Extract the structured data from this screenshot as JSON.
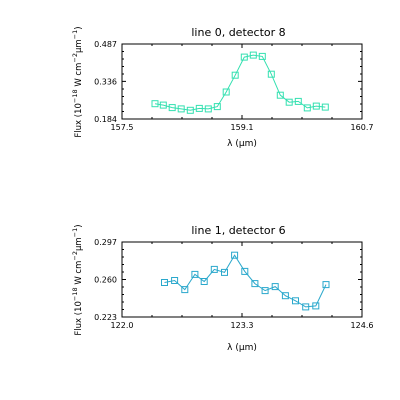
{
  "chart_data": [
    {
      "type": "line",
      "title": "line 0, detector 8",
      "xlabel": "λ (μm)",
      "ylabel_parts": [
        "Flux (10",
        "−18",
        " W cm",
        "−2",
        "μm",
        "−1",
        ")"
      ],
      "xlim": [
        157.5,
        160.7
      ],
      "ylim": [
        0.184,
        0.487
      ],
      "xticks": [
        "157.5",
        "159.1",
        "160.7"
      ],
      "yticks": [
        "0.184",
        "0.336",
        "0.487"
      ],
      "color": "#33e0b0",
      "marker": "square-open",
      "series": [
        {
          "x": [
            157.94,
            158.05,
            158.17,
            158.29,
            158.41,
            158.53,
            158.65,
            158.77,
            158.89,
            159.01,
            159.13,
            159.25,
            159.37,
            159.49,
            159.61,
            159.73,
            159.85,
            159.97,
            160.09,
            160.21
          ],
          "y": [
            0.246,
            0.24,
            0.23,
            0.225,
            0.219,
            0.227,
            0.225,
            0.234,
            0.293,
            0.361,
            0.434,
            0.442,
            0.437,
            0.365,
            0.28,
            0.252,
            0.255,
            0.229,
            0.236,
            0.232
          ]
        }
      ]
    },
    {
      "type": "line",
      "title": "line 1, detector 6",
      "xlabel": "λ (μm)",
      "ylabel_parts": [
        "Flux (10",
        "−18",
        " W cm",
        "−2",
        "μm",
        "−1",
        ")"
      ],
      "xlim": [
        122.0,
        124.6
      ],
      "ylim": [
        0.223,
        0.297
      ],
      "xticks": [
        "122.0",
        "123.3",
        "124.6"
      ],
      "yticks": [
        "0.223",
        "0.260",
        "0.297"
      ],
      "color": "#2aa8cc",
      "marker": "square-open",
      "series": [
        {
          "x": [
            122.46,
            122.57,
            122.68,
            122.79,
            122.89,
            123.0,
            123.11,
            123.22,
            123.33,
            123.44,
            123.55,
            123.66,
            123.77,
            123.88,
            123.99,
            124.1,
            124.21
          ],
          "y": [
            0.257,
            0.259,
            0.25,
            0.265,
            0.258,
            0.27,
            0.267,
            0.284,
            0.268,
            0.256,
            0.249,
            0.253,
            0.244,
            0.239,
            0.233,
            0.234,
            0.255
          ]
        }
      ]
    }
  ]
}
